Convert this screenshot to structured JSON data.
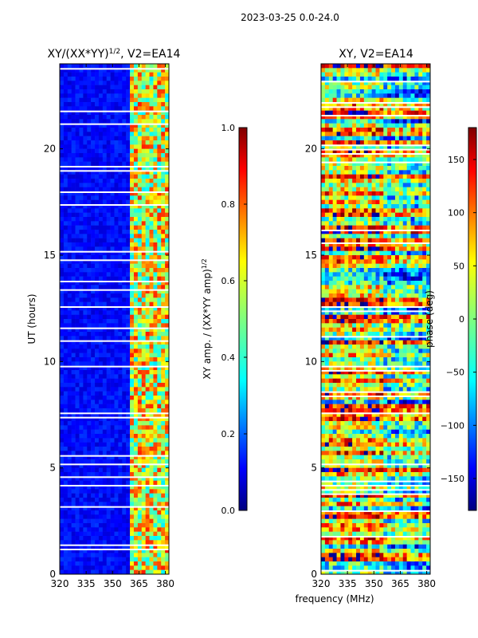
{
  "figure_title": "2023-03-25 0.0-24.0",
  "colors": {
    "jet": [
      "#00007f",
      "#0000ff",
      "#007fff",
      "#00ffff",
      "#7fff7f",
      "#ffff00",
      "#ff7f00",
      "#ff0000",
      "#7f0000"
    ]
  },
  "chart_data": [
    {
      "type": "heatmap",
      "title": "XY/(XX*YY)",
      "title_exponent": "1/2",
      "title_suffix": ", V2=EA14",
      "xlabel": "",
      "ylabel": "UT (hours)",
      "xlim": [
        320,
        382
      ],
      "ylim": [
        0,
        24
      ],
      "xticks": [
        "320",
        "335",
        "350",
        "365",
        "380"
      ],
      "yticks": [
        "0",
        "5",
        "10",
        "15",
        "20"
      ],
      "colorbar": {
        "label": "XY amp. / (XX*YY amp)",
        "label_exponent": "1/2",
        "range": [
          0.0,
          1.0
        ],
        "ticks": [
          "0.0",
          "0.2",
          "0.4",
          "0.6",
          "0.8",
          "1.0"
        ]
      }
    },
    {
      "type": "heatmap",
      "title": "XY, V2=EA14",
      "xlabel": "frequency (MHz)",
      "ylabel": "",
      "xlim": [
        320,
        382
      ],
      "ylim": [
        0,
        24
      ],
      "xticks": [
        "320",
        "335",
        "350",
        "365",
        "380"
      ],
      "yticks": [
        "0",
        "5",
        "10",
        "15",
        "20"
      ],
      "colorbar": {
        "label": "phase (deg)",
        "range": [
          -180,
          180
        ],
        "ticks": [
          "−150",
          "−100",
          "−50",
          "0",
          "50",
          "100",
          "150"
        ]
      }
    }
  ]
}
